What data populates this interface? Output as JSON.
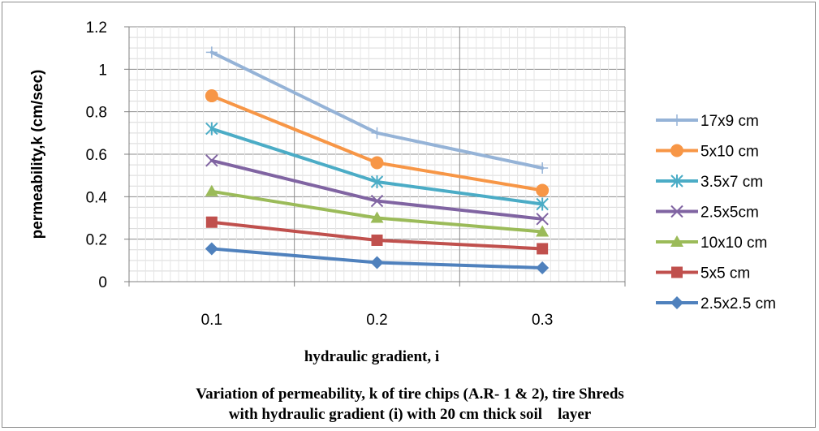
{
  "chart_data": {
    "type": "line",
    "categories": [
      "0.1",
      "0.2",
      "0.3"
    ],
    "ylabel": "permeability,k (cm/sec)",
    "xlabel": "hydraulic gradient, i",
    "caption_line1": "Variation of permeability, k of tire chips (A.R- 1 & 2), tire Shreds",
    "caption_line2": "with hydraulic gradient (i) with 20 cm thick soil    layer",
    "ylim": [
      0,
      1.2
    ],
    "yticks": [
      "0",
      "0.2",
      "0.4",
      "0.6",
      "0.8",
      "1",
      "1.2"
    ],
    "grid": true,
    "legend_position": "right",
    "series": [
      {
        "name": "17x9 cm",
        "values": [
          1.08,
          0.7,
          0.535
        ],
        "color": "#95b3d7",
        "marker": "plus"
      },
      {
        "name": "5x10 cm",
        "values": [
          0.875,
          0.56,
          0.43
        ],
        "color": "#f79646",
        "marker": "circle"
      },
      {
        "name": "3.5x7 cm",
        "values": [
          0.72,
          0.47,
          0.365
        ],
        "color": "#4bacc6",
        "marker": "asterisk"
      },
      {
        "name": "2.5x5cm",
        "values": [
          0.57,
          0.38,
          0.295
        ],
        "color": "#8064a2",
        "marker": "x"
      },
      {
        "name": "10x10 cm",
        "values": [
          0.425,
          0.3,
          0.235
        ],
        "color": "#9bbb59",
        "marker": "triangle"
      },
      {
        "name": "5x5 cm",
        "values": [
          0.28,
          0.195,
          0.155
        ],
        "color": "#c0504d",
        "marker": "square"
      },
      {
        "name": "2.5x2.5 cm",
        "values": [
          0.155,
          0.09,
          0.065
        ],
        "color": "#4f81bd",
        "marker": "diamond"
      }
    ]
  }
}
